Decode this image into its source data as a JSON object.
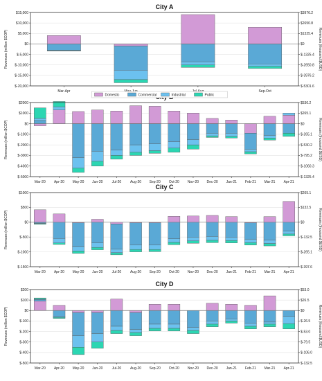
{
  "colors": {
    "Domestic": "#d29ad6",
    "Commercial": "#5aa9d6",
    "Industrial": "#6cc1ef",
    "Public": "#2bd6b2"
  },
  "legend": [
    "Domestic",
    "Commercial",
    "Industrial",
    "Public"
  ],
  "chart_data": [
    {
      "type": "bar",
      "stacked": true,
      "title": "City A",
      "ylabel": "Revenues (million $COP)",
      "y2label": "Revenues (thousand $USD)",
      "ylim": [
        -20000,
        15000
      ],
      "yticks": [
        "$-20,000",
        "$-15,000",
        "$-10,000",
        "$-5,000",
        "$0",
        "$5,000",
        "$10,000",
        "$15,000"
      ],
      "yticks_right": [
        "$-5301.6",
        "$-3976.2",
        "$-2650.8",
        "$-1325.4",
        "$0",
        "$1325.4",
        "$2650.8",
        "$3976.2"
      ],
      "categories": [
        "Mar-Apr",
        "May-Jun",
        "Jul-Aug",
        "Sep-Oct"
      ],
      "series": [
        {
          "name": "Domestic",
          "values": [
            4000,
            -1000,
            14000,
            8000
          ]
        },
        {
          "name": "Commercial",
          "values": [
            -3000,
            -11500,
            -8500,
            -9500
          ]
        },
        {
          "name": "Industrial",
          "values": [
            -300,
            -4500,
            -1500,
            -1200
          ]
        },
        {
          "name": "Public",
          "values": [
            -100,
            -1500,
            -1200,
            -1000
          ]
        }
      ]
    },
    {
      "type": "bar",
      "stacked": true,
      "title": "City B",
      "ylabel": "Revenues (million $COP)",
      "y2label": "Revenues (thousand $USD)",
      "ylim": [
        -5000,
        2000
      ],
      "yticks": [
        "$-5000",
        "$-4000",
        "$-3000",
        "$-2000",
        "$-1000",
        "$0",
        "$1000",
        "$2000"
      ],
      "yticks_right": [
        "$-1325.4",
        "$-1060.3",
        "$-795.2",
        "$-530.2",
        "$-265.1",
        "$0",
        "$265.1",
        "$530.2"
      ],
      "categories": [
        "Mar-20",
        "Apr-20",
        "May-20",
        "Jun-20",
        "Jul-20",
        "Aug-20",
        "Sep-20",
        "Oct-20",
        "Nov-20",
        "Dec-20",
        "Jan-21",
        "Feb-21",
        "Mar-21",
        "Apr-21"
      ],
      "series": [
        {
          "name": "Domestic",
          "values": [
            -200,
            1300,
            1150,
            1300,
            1200,
            1700,
            1650,
            1200,
            1000,
            500,
            350,
            -900,
            700,
            800
          ]
        },
        {
          "name": "Commercial",
          "values": [
            300,
            0,
            -3200,
            -2600,
            -2500,
            -2000,
            -1900,
            -1700,
            -1500,
            -900,
            -900,
            -1500,
            -1100,
            -900
          ]
        },
        {
          "name": "Industrial",
          "values": [
            200,
            300,
            -1000,
            -950,
            -500,
            -700,
            -650,
            -600,
            -500,
            -250,
            -300,
            -250,
            -250,
            200
          ]
        },
        {
          "name": "Public",
          "values": [
            1000,
            500,
            -400,
            -450,
            -350,
            -300,
            -250,
            -400,
            -400,
            -150,
            -150,
            -200,
            -200,
            -300
          ]
        }
      ]
    },
    {
      "type": "bar",
      "stacked": true,
      "title": "City C",
      "ylabel": "Revenues (million $COP)",
      "y2label": "Revenues (thousand $USD)",
      "ylim": [
        -1500,
        1000
      ],
      "yticks": [
        "$-1500",
        "$-1000",
        "$-500",
        "$0",
        "$500",
        "$1000"
      ],
      "yticks_right": [
        "$-397.6",
        "$-265.1",
        "$-132.5",
        "$0",
        "$132.5",
        "$265.1"
      ],
      "categories": [
        "Mar-20",
        "Apr-20",
        "May-20",
        "Jun-20",
        "Jul-20",
        "Aug-20",
        "Sep-20",
        "Oct-20",
        "Nov-20",
        "Dec-20",
        "Jan-21",
        "Feb-21",
        "Mar-21",
        "Apr-21"
      ],
      "series": [
        {
          "name": "Domestic",
          "values": [
            420,
            280,
            -20,
            100,
            -60,
            -20,
            -20,
            200,
            210,
            230,
            190,
            -20,
            190,
            700
          ]
        },
        {
          "name": "Commercial",
          "values": [
            -30,
            -550,
            -800,
            -700,
            -850,
            -750,
            -750,
            -560,
            -500,
            -480,
            -500,
            -550,
            -600,
            -300
          ]
        },
        {
          "name": "Industrial",
          "values": [
            -20,
            -150,
            -150,
            -150,
            -120,
            -150,
            -150,
            -120,
            -130,
            -130,
            -120,
            -120,
            -120,
            -100
          ]
        },
        {
          "name": "Public",
          "values": [
            -20,
            -50,
            -80,
            -80,
            -70,
            -80,
            -70,
            -80,
            -80,
            -80,
            -80,
            -80,
            -80,
            -60
          ]
        }
      ]
    },
    {
      "type": "bar",
      "stacked": true,
      "title": "City D",
      "ylabel": "Revenues (million $COP)",
      "y2label": "Revenues (thousand $USD)",
      "ylim": [
        -500,
        200
      ],
      "yticks": [
        "$-500",
        "$-400",
        "$-300",
        "$-200",
        "$-100",
        "$0",
        "$100",
        "$200"
      ],
      "yticks_right": [
        "$-132.5",
        "$-106.0",
        "$-79.5",
        "$-53.0",
        "$-26.5",
        "$0",
        "$26.5",
        "$53.0"
      ],
      "categories": [
        "Mar-20",
        "Apr-20",
        "May-20",
        "Jun-20",
        "Jul-20",
        "Aug-20",
        "Sep-20",
        "Oct-20",
        "Nov-20",
        "Dec-20",
        "Jan-21",
        "Feb-21",
        "Mar-21",
        "Apr-21"
      ],
      "series": [
        {
          "name": "Domestic",
          "values": [
            90,
            50,
            -20,
            -20,
            110,
            -20,
            60,
            60,
            0,
            70,
            60,
            50,
            140,
            0
          ]
        },
        {
          "name": "Commercial",
          "values": [
            15,
            -55,
            -220,
            -200,
            -150,
            -160,
            -130,
            -130,
            -160,
            -100,
            -80,
            -120,
            -110,
            -55
          ]
        },
        {
          "name": "Industrial",
          "values": [
            5,
            -10,
            -110,
            -80,
            -40,
            -30,
            -40,
            -40,
            -30,
            -30,
            -20,
            -30,
            -20,
            -70
          ]
        },
        {
          "name": "Public",
          "values": [
            10,
            -10,
            -70,
            -60,
            -30,
            -30,
            -25,
            -25,
            -30,
            -25,
            -20,
            -25,
            -25,
            -50
          ]
        }
      ]
    }
  ]
}
